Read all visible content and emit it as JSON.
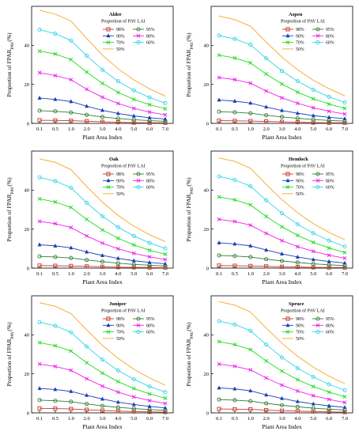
{
  "colors": {
    "98%": "#c0392b",
    "95%": "#2e7d32",
    "90%": "#1a3fb8",
    "80%": "#ee22ee",
    "70%": "#22dd22",
    "60%": "#33d6e6",
    "50%": "#f5a623"
  },
  "markers": {
    "98%": "square",
    "95%": "circle",
    "90%": "triangle",
    "80%": "x",
    "70%": "x",
    "60%": "circle",
    "50%": "none"
  },
  "chart_data": [
    {
      "type": "line",
      "panel_title": "Alder",
      "xlabel": "Plant Area Index",
      "ylabel_main": "Proportion of FPAR",
      "ylabel_sub": "PAV",
      "ylabel_suffix": "(%)",
      "legend_title": "Proportion of PAV LAI",
      "ylim": [
        0,
        60
      ],
      "yticks": [
        "0",
        "20",
        "40"
      ],
      "ytick_values": [
        0,
        20,
        40
      ],
      "categories": [
        "0.1",
        "0.5",
        "1.0",
        "2.0",
        "3.0",
        "4.0",
        "5.0",
        "6.0",
        "7.0"
      ],
      "series": [
        {
          "name": "98%",
          "values": [
            1.6,
            1.5,
            1.4,
            1.1,
            0.8,
            0.6,
            0.4,
            0.3,
            0.3
          ]
        },
        {
          "name": "95%",
          "values": [
            6.5,
            6.2,
            5.6,
            4.4,
            3.3,
            2.5,
            1.9,
            1.4,
            1.1
          ]
        },
        {
          "name": "90%",
          "values": [
            13,
            12.3,
            11.2,
            8.8,
            6.7,
            5.1,
            3.8,
            2.9,
            2.2
          ]
        },
        {
          "name": "80%",
          "values": [
            26,
            24.5,
            22.4,
            17.5,
            13.4,
            10.2,
            7.7,
            5.8,
            4.4
          ]
        },
        {
          "name": "70%",
          "values": [
            37,
            35.6,
            32.7,
            26.3,
            20.5,
            15.9,
            12.3,
            9.6,
            7.5
          ]
        },
        {
          "name": "60%",
          "values": [
            48,
            46,
            42.5,
            34.7,
            27.5,
            21.6,
            16.9,
            13.3,
            10.4
          ]
        },
        {
          "name": "50%",
          "values": [
            58,
            56,
            52.5,
            43.5,
            35,
            28,
            22.3,
            17.7,
            14
          ]
        }
      ]
    },
    {
      "type": "line",
      "panel_title": "Aspen",
      "xlabel": "Plant Area Index",
      "ylabel_main": "Proportion of FPAR",
      "ylabel_sub": "PAV",
      "ylabel_suffix": "(%)",
      "legend_title": "Proportion of PAV LAI",
      "ylim": [
        0,
        60
      ],
      "yticks": [
        "0",
        "20",
        "40"
      ],
      "ytick_values": [
        0,
        20,
        40
      ],
      "categories": [
        "0.1",
        "0.5",
        "1.0",
        "2.0",
        "3.0",
        "4.0",
        "5.0",
        "6.0",
        "7.0"
      ],
      "series": [
        {
          "name": "98%",
          "values": [
            1.4,
            1.3,
            1.2,
            1.0,
            0.8,
            0.6,
            0.4,
            0.3,
            0.3
          ]
        },
        {
          "name": "95%",
          "values": [
            6.0,
            5.7,
            5.2,
            4.2,
            3.3,
            2.6,
            2.0,
            1.5,
            1.2
          ]
        },
        {
          "name": "90%",
          "values": [
            12,
            11.4,
            10.4,
            8.4,
            6.6,
            5.2,
            4.0,
            3.1,
            2.4
          ]
        },
        {
          "name": "80%",
          "values": [
            23.5,
            22.4,
            20.6,
            16.6,
            13.1,
            10.3,
            8.0,
            6.2,
            4.8
          ]
        },
        {
          "name": "70%",
          "values": [
            35,
            33.5,
            31,
            25.3,
            20.2,
            16,
            12.6,
            9.9,
            7.7
          ]
        },
        {
          "name": "60%",
          "values": [
            45,
            43.3,
            40.3,
            33.3,
            26.9,
            21.6,
            17.2,
            13.6,
            10.7
          ]
        },
        {
          "name": "50%",
          "values": [
            55,
            53.2,
            49.8,
            41.7,
            34,
            27.5,
            22.1,
            17.8,
            14.1
          ]
        }
      ]
    },
    {
      "type": "line",
      "panel_title": "Oak",
      "xlabel": "Plant Area Index",
      "ylabel_main": "Proportion of FPAR",
      "ylabel_sub": "PAV",
      "ylabel_suffix": "(%)",
      "legend_title": "Proportion of PAV LAI",
      "ylim": [
        0,
        60
      ],
      "yticks": [
        "0",
        "20",
        "40"
      ],
      "ytick_values": [
        0,
        20,
        40
      ],
      "categories": [
        "0.1",
        "0.5",
        "1.0",
        "2.0",
        "3.0",
        "4.0",
        "5.0",
        "6.0",
        "7.0"
      ],
      "series": [
        {
          "name": "98%",
          "values": [
            1.3,
            1.2,
            1.1,
            0.9,
            0.7,
            0.5,
            0.4,
            0.3,
            0.2
          ]
        },
        {
          "name": "95%",
          "values": [
            6.0,
            5.7,
            5.2,
            4.2,
            3.3,
            2.5,
            1.9,
            1.5,
            1.1
          ]
        },
        {
          "name": "90%",
          "values": [
            12,
            11.4,
            10.4,
            8.3,
            6.5,
            5.0,
            3.8,
            2.9,
            2.2
          ]
        },
        {
          "name": "80%",
          "values": [
            24,
            22.8,
            20.8,
            16.5,
            12.8,
            9.9,
            7.6,
            5.8,
            4.4
          ]
        },
        {
          "name": "70%",
          "values": [
            35.5,
            33.9,
            31.1,
            25,
            19.6,
            15.3,
            11.9,
            9.2,
            7.1
          ]
        },
        {
          "name": "60%",
          "values": [
            46.5,
            44.6,
            41.2,
            33.5,
            26.6,
            21,
            16.5,
            12.9,
            10.1
          ]
        },
        {
          "name": "50%",
          "values": [
            56,
            54.2,
            50.5,
            41.9,
            33.8,
            27,
            21.5,
            17.1,
            13.6
          ]
        }
      ]
    },
    {
      "type": "line",
      "panel_title": "Hemlock",
      "xlabel": "Plant Area Index",
      "ylabel_main": "Proportion of FPAR",
      "ylabel_sub": "PAV",
      "ylabel_suffix": "(%)",
      "legend_title": "Proportion of PAV LAI",
      "ylim": [
        0,
        60
      ],
      "yticks": [
        "0",
        "20",
        "40"
      ],
      "ytick_values": [
        0,
        20,
        40
      ],
      "categories": [
        "0.1",
        "0.5",
        "1.0",
        "2.0",
        "3.0",
        "4.0",
        "5.0",
        "6.0",
        "7.0"
      ],
      "series": [
        {
          "name": "98%",
          "values": [
            1.3,
            1.2,
            1.1,
            0.9,
            0.7,
            0.6,
            0.4,
            0.3,
            0.3
          ]
        },
        {
          "name": "95%",
          "values": [
            6.5,
            6.2,
            5.7,
            4.6,
            3.7,
            2.9,
            2.2,
            1.7,
            1.3
          ]
        },
        {
          "name": "90%",
          "values": [
            13,
            12.4,
            11.4,
            9.3,
            7.3,
            5.7,
            4.4,
            3.4,
            2.6
          ]
        },
        {
          "name": "80%",
          "values": [
            25,
            23.9,
            22,
            17.8,
            14.1,
            11,
            8.6,
            6.6,
            5.1
          ]
        },
        {
          "name": "70%",
          "values": [
            36.5,
            35,
            32.4,
            26.5,
            21.2,
            16.8,
            13.2,
            10.3,
            8.0
          ]
        },
        {
          "name": "60%",
          "values": [
            47,
            45.2,
            42,
            34.8,
            28.1,
            22.5,
            17.9,
            14.1,
            11.1
          ]
        },
        {
          "name": "50%",
          "values": [
            56.5,
            54.7,
            51.2,
            42.9,
            35.1,
            28.4,
            22.8,
            18.3,
            14.5
          ]
        }
      ]
    },
    {
      "type": "line",
      "panel_title": "Juniper",
      "xlabel": "Plant Area Index",
      "ylabel_main": "Proportion of FPAR",
      "ylabel_sub": "PAV",
      "ylabel_suffix": "(%)",
      "legend_title": "Proportion of PAV LAI",
      "ylim": [
        0,
        60
      ],
      "yticks": [
        "0",
        "20",
        "40"
      ],
      "ytick_values": [
        0,
        20,
        40
      ],
      "categories": [
        "0.1",
        "0.5",
        "1.0",
        "2.0",
        "3.0",
        "4.0",
        "5.0",
        "6.0",
        "7.0"
      ],
      "series": [
        {
          "name": "98%",
          "values": [
            2.3,
            2.2,
            2.0,
            1.6,
            1.2,
            0.9,
            0.7,
            0.5,
            0.4
          ]
        },
        {
          "name": "95%",
          "values": [
            6.5,
            6.2,
            5.7,
            4.6,
            3.6,
            2.8,
            2.2,
            1.7,
            1.3
          ]
        },
        {
          "name": "90%",
          "values": [
            12.5,
            12,
            11,
            9.0,
            7.1,
            5.5,
            4.3,
            3.3,
            2.5
          ]
        },
        {
          "name": "80%",
          "values": [
            25,
            23.8,
            21.8,
            17.5,
            13.7,
            10.6,
            8.2,
            6.3,
            4.8
          ]
        },
        {
          "name": "70%",
          "values": [
            36,
            34.4,
            31.7,
            25.7,
            20.4,
            16,
            12.5,
            9.7,
            7.5
          ]
        },
        {
          "name": "60%",
          "values": [
            46.5,
            44.6,
            41.3,
            34,
            27.3,
            21.7,
            17.2,
            13.5,
            10.6
          ]
        },
        {
          "name": "50%",
          "values": [
            56.5,
            54.6,
            50.9,
            42.5,
            34.6,
            27.9,
            22.4,
            17.9,
            14.2
          ]
        }
      ]
    },
    {
      "type": "line",
      "panel_title": "Spruce",
      "xlabel": "Plant Area Index",
      "ylabel_main": "Proportion of FPAR",
      "ylabel_sub": "PAV",
      "ylabel_suffix": "(%)",
      "legend_title": "Proportion of PAV LAI",
      "ylim": [
        0,
        60
      ],
      "yticks": [
        "0",
        "20",
        "40"
      ],
      "ytick_values": [
        0,
        20,
        40
      ],
      "categories": [
        "0.1",
        "0.5",
        "1.0",
        "2.0",
        "3.0",
        "4.0",
        "5.0",
        "6.0",
        "7.0"
      ],
      "series": [
        {
          "name": "98%",
          "values": [
            2.0,
            1.9,
            1.8,
            1.4,
            1.1,
            0.9,
            0.7,
            0.5,
            0.4
          ]
        },
        {
          "name": "95%",
          "values": [
            6.8,
            6.5,
            6.0,
            4.9,
            3.9,
            3.1,
            2.4,
            1.9,
            1.5
          ]
        },
        {
          "name": "90%",
          "values": [
            12.8,
            12.3,
            11.3,
            9.2,
            7.4,
            5.8,
            4.6,
            3.6,
            2.8
          ]
        },
        {
          "name": "80%",
          "values": [
            25,
            23.9,
            22,
            17.9,
            14.2,
            11.2,
            8.8,
            6.9,
            5.3
          ]
        },
        {
          "name": "70%",
          "values": [
            36.5,
            35,
            32.4,
            26.6,
            21.4,
            17,
            13.5,
            10.6,
            8.3
          ]
        },
        {
          "name": "60%",
          "values": [
            47,
            45.3,
            42.1,
            35,
            28.4,
            22.9,
            18.4,
            14.6,
            11.6
          ]
        },
        {
          "name": "50%",
          "values": [
            57,
            55.2,
            51.7,
            43.5,
            35.7,
            29,
            23.4,
            18.8,
            15
          ]
        }
      ]
    }
  ]
}
